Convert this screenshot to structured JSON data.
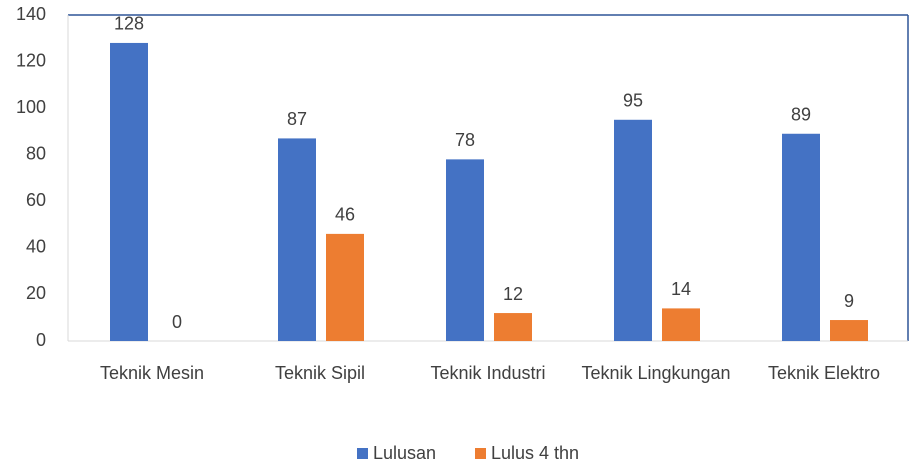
{
  "chart_data": {
    "type": "bar",
    "categories": [
      "Teknik Mesin",
      "Teknik Sipil",
      "Teknik Industri",
      "Teknik Lingkungan",
      "Teknik Elektro"
    ],
    "series": [
      {
        "name": "Lulusan",
        "color": "#4472c4",
        "values": [
          128,
          87,
          78,
          95,
          89
        ]
      },
      {
        "name": "Lulus 4 thn",
        "color": "#ed7d31",
        "values": [
          0,
          46,
          12,
          14,
          9
        ]
      }
    ],
    "ylim": [
      0,
      140
    ],
    "yticks": [
      0,
      20,
      40,
      60,
      80,
      100,
      120,
      140
    ],
    "grid": false,
    "legend": "bottom"
  }
}
